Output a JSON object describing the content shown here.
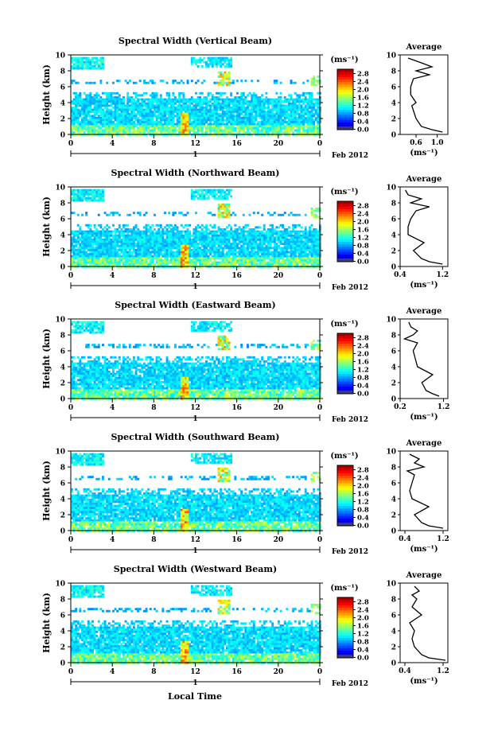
{
  "figure": {
    "xlabel": "Local Time",
    "date_label": "Feb 2012",
    "colorbar_unit": "(ms⁻¹)",
    "avg_title": "Average",
    "avg_xlabel": "(ms⁻¹)"
  },
  "chart_data": [
    {
      "type": "heatmap",
      "title": "Spectral Width (Vertical Beam)",
      "xlabel": "Local Time",
      "ylabel": "Height (km)",
      "xlim": [
        0,
        24
      ],
      "ylim": [
        0,
        10
      ],
      "xticks": [
        "0",
        "4",
        "8",
        "12",
        "16",
        "20",
        "0"
      ],
      "yticks": [
        "0",
        "2",
        "4",
        "6",
        "8",
        "10"
      ],
      "day_label": "1",
      "colorbar": {
        "unit": "(ms⁻¹)",
        "ticks": [
          "0.0",
          "0.4",
          "0.8",
          "1.2",
          "1.6",
          "2.0",
          "2.4",
          "2.8"
        ],
        "range": [
          0,
          3
        ]
      },
      "profile": {
        "title": "Average",
        "xlabel": "(ms⁻¹)",
        "xlim": [
          0.3,
          1.2
        ],
        "xticks": [
          "0.6",
          "1.0"
        ],
        "yticks": [
          "0",
          "2",
          "4",
          "6",
          "8",
          "10"
        ],
        "heights": [
          0.3,
          0.6,
          1,
          2,
          3,
          3.6,
          4,
          5,
          6,
          7,
          7.5,
          8,
          8.5,
          9,
          9.6
        ],
        "values": [
          1.1,
          0.9,
          0.7,
          0.6,
          0.55,
          0.52,
          0.6,
          0.5,
          0.5,
          0.55,
          0.85,
          0.6,
          0.9,
          0.7,
          0.45
        ]
      }
    },
    {
      "type": "heatmap",
      "title": "Spectral Width (Northward Beam)",
      "xlabel": "Local Time",
      "ylabel": "Height (km)",
      "xlim": [
        0,
        24
      ],
      "ylim": [
        0,
        10
      ],
      "xticks": [
        "0",
        "4",
        "8",
        "12",
        "16",
        "20",
        "0"
      ],
      "yticks": [
        "0",
        "2",
        "4",
        "6",
        "8",
        "10"
      ],
      "day_label": "1",
      "colorbar": {
        "unit": "(ms⁻¹)",
        "ticks": [
          "0.0",
          "0.4",
          "0.8",
          "1.2",
          "1.6",
          "2.0",
          "2.4",
          "2.8"
        ],
        "range": [
          0,
          3
        ]
      },
      "profile": {
        "title": "Average",
        "xlabel": "(ms⁻¹)",
        "xlim": [
          0.4,
          1.3
        ],
        "xticks": [
          "0.4",
          "1.2"
        ],
        "yticks": [
          "0",
          "2",
          "4",
          "6",
          "8",
          "10"
        ],
        "heights": [
          0.3,
          0.6,
          1,
          2,
          3,
          4,
          5,
          6,
          7,
          7.5,
          8,
          8.5,
          9,
          9.6
        ],
        "values": [
          1.2,
          0.95,
          0.8,
          0.65,
          0.85,
          0.55,
          0.55,
          0.6,
          0.7,
          0.95,
          0.6,
          0.8,
          0.55,
          0.5
        ]
      }
    },
    {
      "type": "heatmap",
      "title": "Spectral Width (Eastward Beam)",
      "xlabel": "Local Time",
      "ylabel": "Height (km)",
      "xlim": [
        0,
        24
      ],
      "ylim": [
        0,
        10
      ],
      "xticks": [
        "0",
        "4",
        "8",
        "12",
        "16",
        "20",
        "0"
      ],
      "yticks": [
        "0",
        "2",
        "4",
        "6",
        "8",
        "10"
      ],
      "day_label": "1",
      "colorbar": {
        "unit": "(ms⁻¹)",
        "ticks": [
          "0.0",
          "0.4",
          "0.8",
          "1.2",
          "1.6",
          "2.0",
          "2.4",
          "2.8"
        ],
        "range": [
          0,
          3
        ]
      },
      "profile": {
        "title": "Average",
        "xlabel": "(ms⁻¹)",
        "xlim": [
          0.2,
          1.3
        ],
        "xticks": [
          "0.2",
          "1.2"
        ],
        "yticks": [
          "0",
          "2",
          "4",
          "6",
          "8",
          "10"
        ],
        "heights": [
          0.3,
          0.6,
          1,
          2,
          3,
          4,
          5,
          6,
          7,
          7.5,
          8,
          8.5,
          9,
          9.6
        ],
        "values": [
          1.1,
          0.95,
          0.8,
          0.7,
          0.95,
          0.6,
          0.55,
          0.5,
          0.6,
          0.3,
          0.5,
          0.6,
          0.45,
          0.4
        ]
      }
    },
    {
      "type": "heatmap",
      "title": "Spectral Width (Southward Beam)",
      "xlabel": "Local Time",
      "ylabel": "Height (km)",
      "xlim": [
        0,
        24
      ],
      "ylim": [
        0,
        10
      ],
      "xticks": [
        "0",
        "4",
        "8",
        "12",
        "16",
        "20",
        "0"
      ],
      "yticks": [
        "0",
        "2",
        "4",
        "6",
        "8",
        "10"
      ],
      "day_label": "1",
      "colorbar": {
        "unit": "(ms⁻¹)",
        "ticks": [
          "0.0",
          "0.4",
          "0.8",
          "1.2",
          "1.6",
          "2.0",
          "2.4",
          "2.8"
        ],
        "range": [
          0,
          3
        ]
      },
      "profile": {
        "title": "Average",
        "xlabel": "(ms⁻¹)",
        "xlim": [
          0.3,
          1.3
        ],
        "xticks": [
          "0.4",
          "1.2"
        ],
        "yticks": [
          "0",
          "2",
          "4",
          "6",
          "8",
          "10"
        ],
        "heights": [
          0.3,
          0.6,
          1,
          2,
          3,
          4,
          5,
          6,
          7,
          7.5,
          8,
          8.5,
          9,
          9.6
        ],
        "values": [
          1.2,
          0.9,
          0.75,
          0.6,
          0.9,
          0.55,
          0.5,
          0.55,
          0.6,
          0.45,
          0.8,
          0.6,
          0.7,
          0.5
        ]
      }
    },
    {
      "type": "heatmap",
      "title": "Spectral Width (Westward Beam)",
      "xlabel": "Local Time",
      "ylabel": "Height (km)",
      "xlim": [
        0,
        24
      ],
      "ylim": [
        0,
        10
      ],
      "xticks": [
        "0",
        "4",
        "8",
        "12",
        "16",
        "20",
        "0"
      ],
      "yticks": [
        "0",
        "2",
        "4",
        "6",
        "8",
        "10"
      ],
      "day_label": "1",
      "colorbar": {
        "unit": "(ms⁻¹)",
        "ticks": [
          "0.0",
          "0.4",
          "0.8",
          "1.2",
          "1.6",
          "2.0",
          "2.4",
          "2.8"
        ],
        "range": [
          0,
          3
        ]
      },
      "profile": {
        "title": "Average",
        "xlabel": "(ms⁻¹)",
        "xlim": [
          0.3,
          1.3
        ],
        "xticks": [
          "0.4",
          "1.2"
        ],
        "yticks": [
          "0",
          "2",
          "4",
          "6",
          "8",
          "10"
        ],
        "heights": [
          0.3,
          0.6,
          1,
          2,
          3,
          4,
          5,
          6,
          7,
          7.5,
          8,
          8.5,
          9,
          9.6
        ],
        "values": [
          1.25,
          0.9,
          0.75,
          0.6,
          0.55,
          0.6,
          0.5,
          0.75,
          0.55,
          0.6,
          0.65,
          0.55,
          0.7,
          0.6
        ]
      }
    }
  ]
}
